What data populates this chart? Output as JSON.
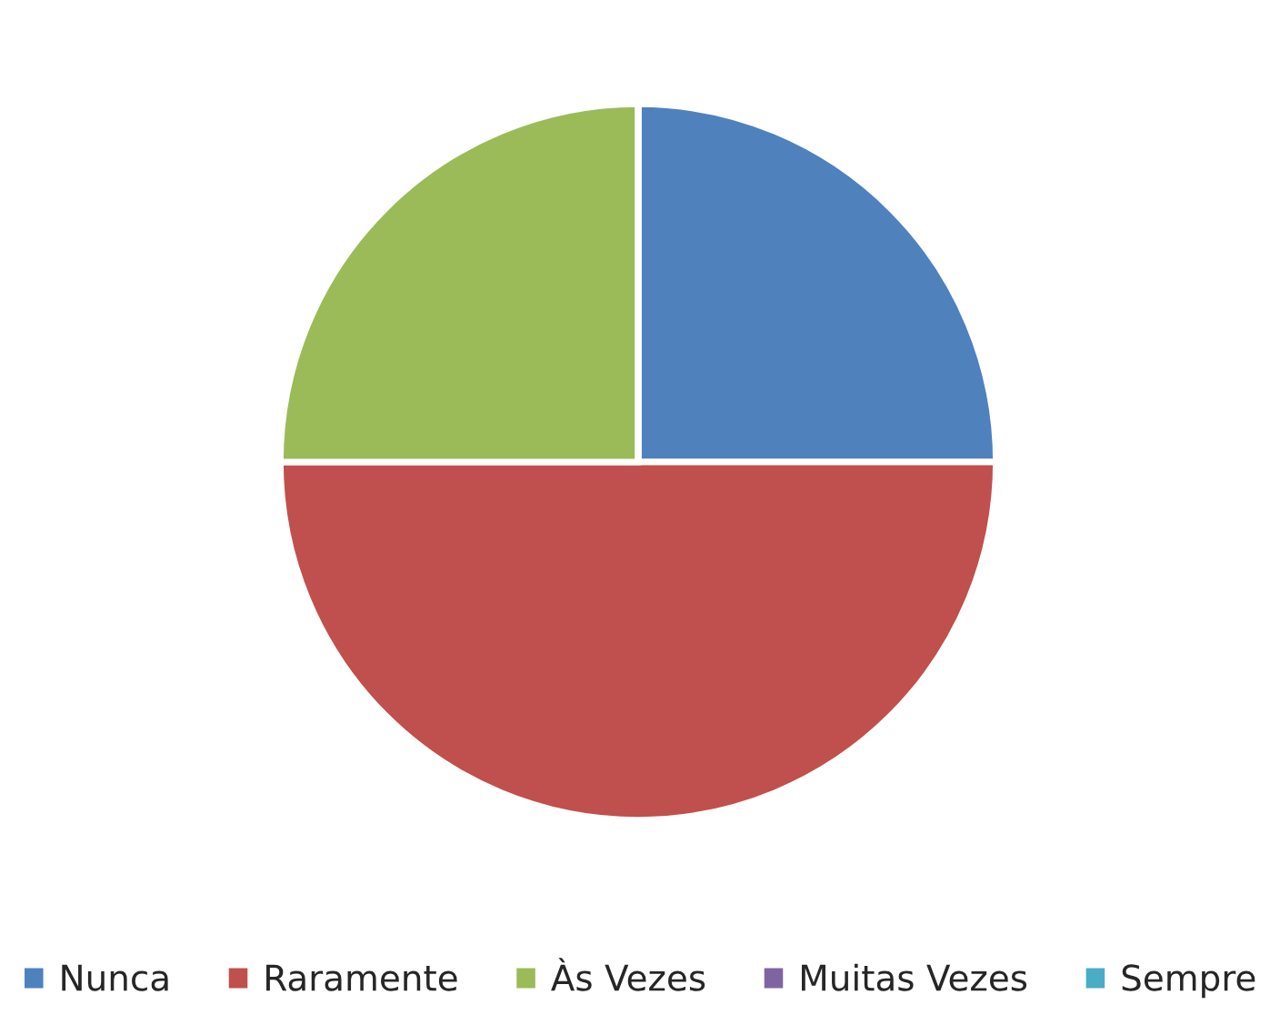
{
  "chart_data": {
    "type": "pie",
    "categories": [
      "Nunca",
      "Raramente",
      "Às Vezes",
      "Muitas Vezes",
      "Sempre"
    ],
    "values": [
      25,
      50,
      25,
      0,
      0
    ],
    "colors": [
      "#4f81bd",
      "#c0504d",
      "#9bbb59",
      "#8064a2",
      "#4bacc6"
    ],
    "legend": "bottom"
  }
}
